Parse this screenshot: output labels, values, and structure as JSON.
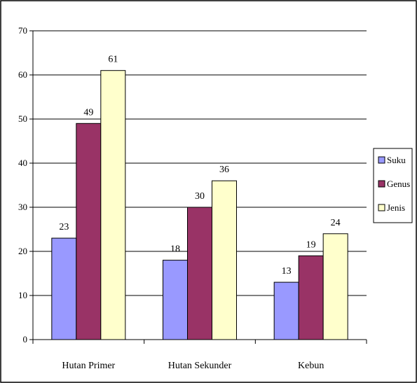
{
  "chart_data": {
    "type": "bar",
    "categories": [
      "Hutan Primer",
      "Hutan Sekunder",
      "Kebun"
    ],
    "series": [
      {
        "name": "Suku",
        "values": [
          23,
          18,
          13
        ]
      },
      {
        "name": "Genus",
        "values": [
          49,
          30,
          19
        ]
      },
      {
        "name": "Jenis",
        "values": [
          61,
          36,
          24
        ]
      }
    ],
    "ylim": [
      0,
      70
    ],
    "yticks": [
      0,
      10,
      20,
      30,
      40,
      50,
      60,
      70
    ],
    "grid": true,
    "legend_position": "right",
    "data_labels": true,
    "colors": {
      "Suku": "#9999ff",
      "Genus": "#993366",
      "Jenis": "#ffffcc"
    }
  }
}
